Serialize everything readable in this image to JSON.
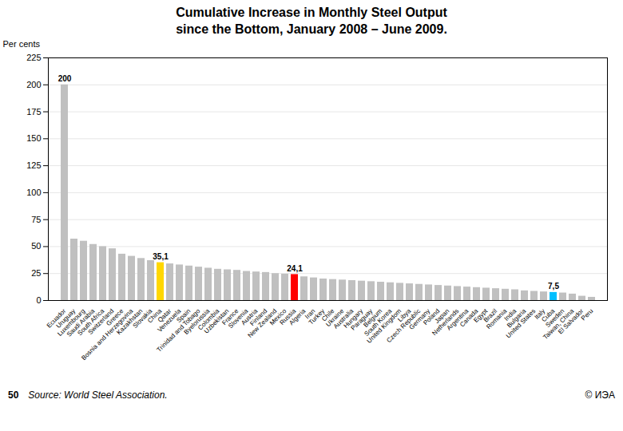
{
  "chart_data": {
    "type": "bar",
    "title": "Cumulative Increase in Monthly Steel Output\nsince the Bottom, January 2008 – June 2009.",
    "ylabel": "Per cents",
    "source": "Source: World Steel Association.",
    "page_number": "50",
    "copyright": "© ИЭА",
    "categories": [
      "Ecuador",
      "Uruguay",
      "Luxembourg",
      "Saudi Arabia",
      "South Africa",
      "Switzerland",
      "Greece",
      "Bosnia and Herzegovina",
      "Kazakhstan",
      "Slovakia",
      "China",
      "Qatar",
      "Venezuela",
      "Spain",
      "Trinidad and Tobago",
      "Byelorussia",
      "Colombia",
      "Uzbekistan",
      "France",
      "Slovenia",
      "Austria",
      "Finland",
      "New Zealand",
      "Mexico",
      "Russia",
      "Algeria",
      "Iran",
      "Turkey",
      "Chile",
      "Ukraine",
      "Australia",
      "Hungary",
      "Paraguay",
      "Belgium",
      "South Korea",
      "United Kingdom",
      "Libya",
      "Czech Republic",
      "Germany",
      "Poland",
      "Japan",
      "Netherlands",
      "Argentina",
      "Canada",
      "Egypt",
      "Brazil",
      "Romania",
      "India",
      "Bulgaria",
      "United States",
      "Italy",
      "Cuba",
      "Sweden",
      "Taiwan, China",
      "El Salvador",
      "Peru"
    ],
    "values": [
      200,
      57,
      55,
      52,
      50,
      48,
      43,
      41,
      39,
      37,
      35.1,
      34,
      33,
      32,
      31,
      30,
      29,
      28.5,
      28,
      27,
      26.5,
      26,
      25,
      24.5,
      24.1,
      22,
      21,
      20,
      19.5,
      19,
      18.5,
      18,
      17.5,
      17,
      16.5,
      16,
      15.5,
      15,
      14.5,
      14,
      13.5,
      13,
      12.5,
      12,
      11.5,
      11,
      10.5,
      10,
      9,
      8.5,
      8,
      7.5,
      7,
      6,
      4,
      3
    ],
    "colors": [
      "#C0C0C0",
      "#C0C0C0",
      "#C0C0C0",
      "#C0C0C0",
      "#C0C0C0",
      "#C0C0C0",
      "#C0C0C0",
      "#C0C0C0",
      "#C0C0C0",
      "#C0C0C0",
      "#FFD700",
      "#C0C0C0",
      "#C0C0C0",
      "#C0C0C0",
      "#C0C0C0",
      "#C0C0C0",
      "#C0C0C0",
      "#C0C0C0",
      "#C0C0C0",
      "#C0C0C0",
      "#C0C0C0",
      "#C0C0C0",
      "#C0C0C0",
      "#C0C0C0",
      "#FF0000",
      "#C0C0C0",
      "#C0C0C0",
      "#C0C0C0",
      "#C0C0C0",
      "#C0C0C0",
      "#C0C0C0",
      "#C0C0C0",
      "#C0C0C0",
      "#C0C0C0",
      "#C0C0C0",
      "#C0C0C0",
      "#C0C0C0",
      "#C0C0C0",
      "#C0C0C0",
      "#C0C0C0",
      "#C0C0C0",
      "#C0C0C0",
      "#C0C0C0",
      "#C0C0C0",
      "#C0C0C0",
      "#C0C0C0",
      "#C0C0C0",
      "#C0C0C0",
      "#C0C0C0",
      "#C0C0C0",
      "#C0C0C0",
      "#00BFFF",
      "#C0C0C0",
      "#C0C0C0",
      "#C0C0C0",
      "#C0C0C0"
    ],
    "annotations": [
      {
        "text": "200",
        "x": "Ecuador",
        "y": 200
      },
      {
        "text": "35,1",
        "x": "China",
        "y": 35.1
      },
      {
        "text": "24,1",
        "x": "Russia",
        "y": 24.1
      },
      {
        "text": "7,5",
        "x": "Cuba",
        "y": 7.5
      }
    ],
    "ylim": [
      0,
      225
    ],
    "yticks": [
      0,
      25,
      50,
      75,
      100,
      125,
      150,
      175,
      200,
      225
    ],
    "grid": true
  }
}
